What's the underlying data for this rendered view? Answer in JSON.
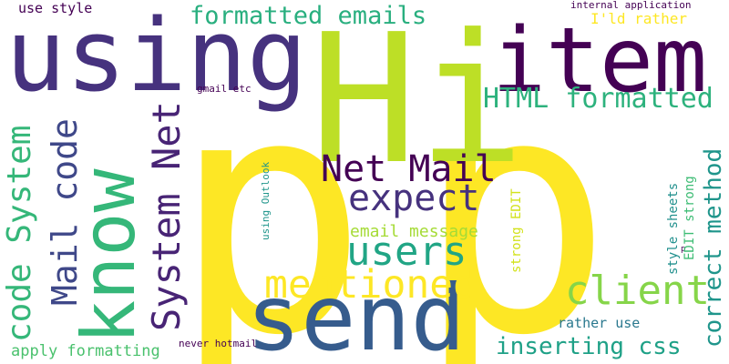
{
  "words": [
    {
      "text": "p",
      "color": "#fde725"
    },
    {
      "text": "p",
      "color": "#fde725"
    },
    {
      "text": "Hi",
      "color": "#bddf26"
    },
    {
      "text": "using",
      "color": "#46327e"
    },
    {
      "text": "item",
      "color": "#440154"
    },
    {
      "text": "send",
      "color": "#365c8d"
    },
    {
      "text": "know",
      "color": "#35b779"
    },
    {
      "text": "formatted emails",
      "color": "#29af7f"
    },
    {
      "text": "HTML formatted",
      "color": "#2db27d"
    },
    {
      "text": "Net Mail",
      "color": "#440154"
    },
    {
      "text": "expect",
      "color": "#46327e"
    },
    {
      "text": "users",
      "color": "#21a585"
    },
    {
      "text": "mentioned",
      "color": "#fde725"
    },
    {
      "text": "client",
      "color": "#86d549"
    },
    {
      "text": "System Net",
      "color": "#482475"
    },
    {
      "text": "Mail code",
      "color": "#3f4889"
    },
    {
      "text": "code System",
      "color": "#35b779"
    },
    {
      "text": "correct method",
      "color": "#1f958b"
    },
    {
      "text": "inserting css",
      "color": "#1fa187"
    },
    {
      "text": "use style",
      "color": "#440154"
    },
    {
      "text": "email message",
      "color": "#a5db36"
    },
    {
      "text": "internal application",
      "color": "#440154"
    },
    {
      "text": "I'ld rather",
      "color": "#fde725"
    },
    {
      "text": "gmail etc",
      "color": "#440154"
    },
    {
      "text": "using Outlook",
      "color": "#1f958b"
    },
    {
      "text": "strong EDIT",
      "color": "#d2e21b"
    },
    {
      "text": "style sheets",
      "color": "#21908d"
    },
    {
      "text": "EDIT strong",
      "color": "#3dbc74"
    },
    {
      "text": "p",
      "color": "#440154"
    },
    {
      "text": "rather use",
      "color": "#2a788e"
    },
    {
      "text": "apply formatting",
      "color": "#4ac16d"
    },
    {
      "text": "never hotmail",
      "color": "#440154"
    }
  ]
}
